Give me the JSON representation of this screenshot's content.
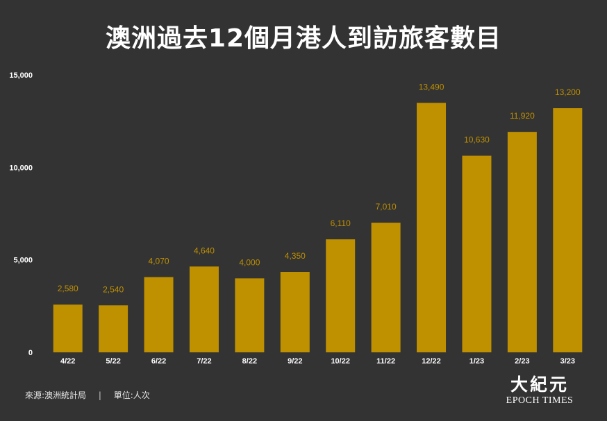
{
  "colors": {
    "background": "#333333",
    "bar": "#bf9000",
    "value_label": "#bf9000",
    "text": "#ffffff"
  },
  "chart_data": {
    "type": "bar",
    "title": "澳洲過去12個月港人到訪旅客數目",
    "xlabel": "",
    "ylabel": "",
    "categories": [
      "4/22",
      "5/22",
      "6/22",
      "7/22",
      "8/22",
      "9/22",
      "10/22",
      "11/22",
      "12/22",
      "1/23",
      "2/23",
      "3/23"
    ],
    "values": [
      2580,
      2540,
      4070,
      4640,
      4000,
      4350,
      6110,
      7010,
      13490,
      10630,
      11920,
      13200
    ],
    "value_labels": [
      "2,580",
      "2,540",
      "4,070",
      "4,640",
      "4,000",
      "4,350",
      "6,110",
      "7,010",
      "13,490",
      "10,630",
      "11,920",
      "13,200"
    ],
    "ylim": [
      0,
      15000
    ],
    "yticks": [
      0,
      5000,
      10000,
      15000
    ],
    "ytick_labels": [
      "0",
      "5,000",
      "10,000",
      "15,000"
    ],
    "grid": false,
    "legend": "none"
  },
  "footer": {
    "source": "來源:澳洲統計局",
    "separator": "|",
    "unit": "單位:人次"
  },
  "logo": {
    "cn": "大紀元",
    "en": "EPOCH TIMES"
  }
}
